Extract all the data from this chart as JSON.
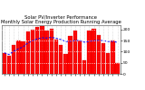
{
  "title": "Solar PV/Inverter Performance\nMonthly Solar Energy Production Running Average",
  "bar_values": [
    95,
    80,
    130,
    150,
    145,
    190,
    200,
    210,
    215,
    195,
    205,
    155,
    130,
    90,
    170,
    195,
    150,
    60,
    195,
    205,
    175,
    140,
    95,
    150,
    50
  ],
  "running_avg": [
    95,
    87.5,
    101.7,
    113,
    122,
    140,
    150,
    158,
    163,
    162,
    165,
    161,
    155,
    146,
    147,
    151,
    150,
    143,
    147,
    150,
    151,
    150,
    146,
    147,
    142
  ],
  "bar_color": "#ff0000",
  "avg_color": "#0000ff",
  "bg_color": "#ffffff",
  "grid_color": "#888888",
  "ylim": [
    0,
    220
  ],
  "ytick_vals": [
    0,
    50,
    100,
    150,
    200
  ],
  "ytick_labels": [
    "0",
    "E",
    "1",
    "1!",
    "2"
  ],
  "title_fontsize": 3.8,
  "tick_fontsize": 3.2,
  "figsize": [
    1.6,
    1.0
  ],
  "dpi": 100
}
